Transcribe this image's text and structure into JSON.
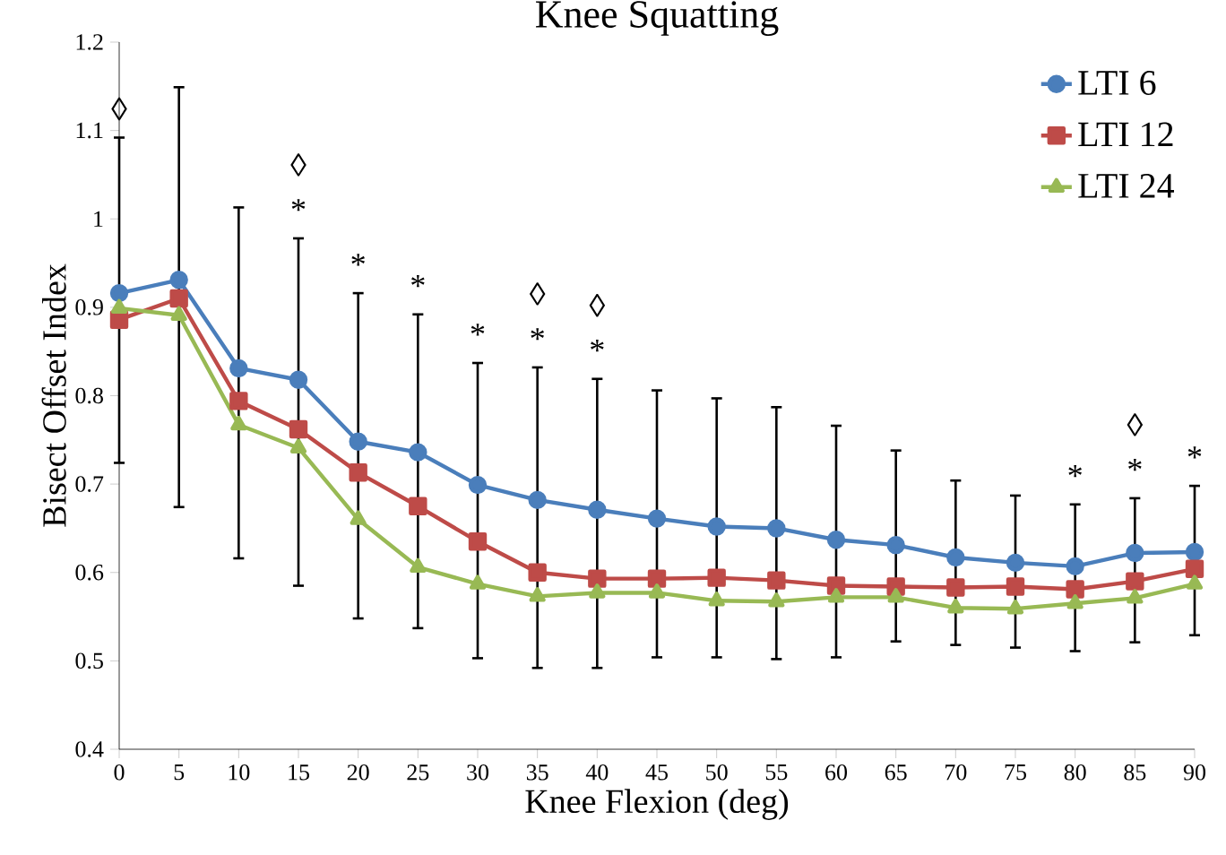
{
  "chart_data": {
    "type": "line",
    "title": "Knee Squatting",
    "xlabel": "Knee Flexion (deg)",
    "ylabel": "Bisect Offset Index",
    "x": [
      0,
      5,
      10,
      15,
      20,
      25,
      30,
      35,
      40,
      45,
      50,
      55,
      60,
      65,
      70,
      75,
      80,
      85,
      90
    ],
    "xlim": [
      0,
      90
    ],
    "ylim": [
      0.4,
      1.2
    ],
    "xticks": [
      0,
      5,
      10,
      15,
      20,
      25,
      30,
      35,
      40,
      45,
      50,
      55,
      60,
      65,
      70,
      75,
      80,
      85,
      90
    ],
    "yticks": [
      0.4,
      0.5,
      0.6,
      0.7,
      0.8,
      0.9,
      1,
      1.1,
      1.2
    ],
    "legend": "top right",
    "line_style": "solid",
    "series": [
      {
        "name": "LTI 6",
        "color": "#4a7ebb",
        "marker": "circle",
        "values": [
          0.916,
          0.931,
          0.831,
          0.818,
          0.748,
          0.736,
          0.699,
          0.682,
          0.671,
          0.661,
          0.652,
          0.65,
          0.637,
          0.631,
          0.617,
          0.611,
          0.607,
          0.622,
          0.623
        ],
        "errors": [
          [
            0.724,
            1.092
          ],
          [
            0.674,
            1.149
          ],
          [
            0.616,
            1.013
          ],
          [
            0.585,
            0.978
          ],
          [
            0.548,
            0.916
          ],
          [
            0.537,
            0.892
          ],
          [
            0.503,
            0.837
          ],
          [
            0.492,
            0.832
          ],
          [
            0.492,
            0.819
          ],
          [
            0.504,
            0.806
          ],
          [
            0.504,
            0.797
          ],
          [
            0.502,
            0.787
          ],
          [
            0.504,
            0.766
          ],
          [
            0.522,
            0.738
          ],
          [
            0.518,
            0.704
          ],
          [
            0.515,
            0.687
          ],
          [
            0.511,
            0.677
          ],
          [
            0.521,
            0.684
          ],
          [
            0.529,
            0.698
          ]
        ]
      },
      {
        "name": "LTI 12",
        "color": "#be4b48",
        "marker": "square",
        "values": [
          0.886,
          0.91,
          0.794,
          0.762,
          0.713,
          0.675,
          0.635,
          0.6,
          0.593,
          0.593,
          0.594,
          0.591,
          0.585,
          0.584,
          0.583,
          0.584,
          0.581,
          0.59,
          0.604
        ]
      },
      {
        "name": "LTI 24",
        "color": "#98b954",
        "marker": "triangle",
        "values": [
          0.899,
          0.891,
          0.767,
          0.741,
          0.66,
          0.606,
          0.587,
          0.573,
          0.577,
          0.577,
          0.568,
          0.567,
          0.572,
          0.572,
          0.56,
          0.559,
          0.565,
          0.571,
          0.587
        ]
      }
    ],
    "annotations": [
      {
        "text": "◊",
        "x": 0,
        "y": 1.092
      },
      {
        "text": "*",
        "x": 15,
        "y": 0.978
      },
      {
        "text": "◊",
        "x": 15,
        "y": 0.978
      },
      {
        "text": "*",
        "x": 20,
        "y": 0.916
      },
      {
        "text": "*",
        "x": 25,
        "y": 0.892
      },
      {
        "text": "*",
        "x": 30,
        "y": 0.837
      },
      {
        "text": "*",
        "x": 35,
        "y": 0.832
      },
      {
        "text": "◊",
        "x": 35,
        "y": 0.832
      },
      {
        "text": "*",
        "x": 40,
        "y": 0.819
      },
      {
        "text": "◊",
        "x": 40,
        "y": 0.819
      },
      {
        "text": "*",
        "x": 80,
        "y": 0.677
      },
      {
        "text": "*",
        "x": 85,
        "y": 0.684
      },
      {
        "text": "◊",
        "x": 85,
        "y": 0.684
      },
      {
        "text": "*",
        "x": 90,
        "y": 0.698
      }
    ]
  }
}
